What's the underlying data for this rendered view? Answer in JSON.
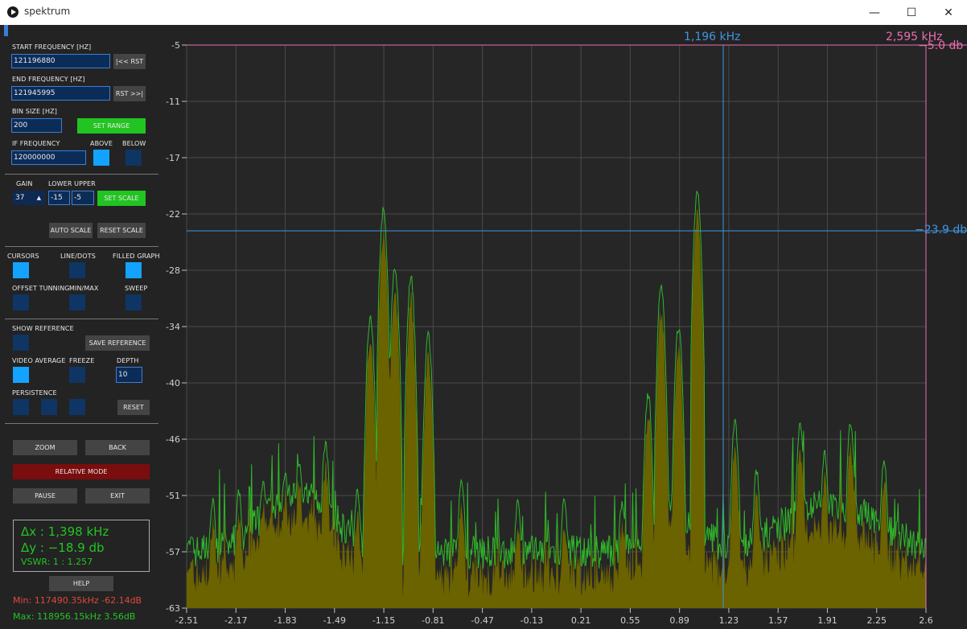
{
  "window": {
    "title": "spektrum",
    "minimize_icon": "—",
    "maximize_icon": "☐",
    "close_icon": "✕"
  },
  "controls": {
    "start_freq_label": "START FREQUENCY [HZ]",
    "start_freq_value": "121196880",
    "rst_left_label": "|<< RST",
    "end_freq_label": "END FREQUENCY [HZ]",
    "end_freq_value": "121945995",
    "rst_right_label": "RST >>|",
    "bin_size_label": "BIN SIZE [HZ]",
    "bin_size_value": "200",
    "set_range_label": "SET RANGE",
    "if_freq_label": "IF FREQUENCY",
    "if_freq_value": "120000000",
    "above_label": "ABOVE",
    "above_checked": true,
    "below_label": "BELOW",
    "below_checked": false,
    "gain_label": "GAIN",
    "gain_value": "37",
    "gain_arrow": "▲",
    "lower_upper_label": "LOWER UPPER",
    "lower_value": "-15",
    "upper_value": "-5",
    "set_scale_label": "SET SCALE",
    "auto_scale_label": "AUTO SCALE",
    "reset_scale_label": "RESET SCALE",
    "cursors_label": "CURSORS",
    "cursors_checked": true,
    "line_dots_label": "LINE/DOTS",
    "line_dots_checked": false,
    "filled_graph_label": "FILLED GRAPH",
    "filled_graph_checked": true,
    "offset_tuning_label": "OFFSET TUNNING",
    "offset_tuning_checked": false,
    "min_max_label": "MIN/MAX",
    "min_max_checked": false,
    "sweep_label": "SWEEP",
    "sweep_checked": false,
    "show_reference_label": "SHOW REFERENCE",
    "show_reference_checked": false,
    "save_reference_label": "SAVE REFERENCE",
    "video_average_label": "VIDEO AVERAGE",
    "video_average_checked": true,
    "freeze_label": "FREEZE",
    "freeze_checked": false,
    "depth_label": "DEPTH",
    "depth_value": "10",
    "persistence_label": "PERSISTENCE",
    "reset_label": "RESET",
    "zoom_label": "ZOOM",
    "back_label": "BACK",
    "relative_mode_label": "RELATIVE MODE",
    "pause_label": "PAUSE",
    "exit_label": "EXIT",
    "help_label": "HELP"
  },
  "readout": {
    "dx": "Δx : 1,398 kHz",
    "dy": "Δy : −18.9 db",
    "vswr": "VSWR: 1 : 1.257",
    "min": "Min: 117490.35kHz -62.14dB",
    "max": "Max: 118956.15kHz 3.56dB"
  },
  "chart_data": {
    "type": "area",
    "title": "",
    "xlabel": "",
    "ylabel": "",
    "xlim": [
      -2.51,
      2.6
    ],
    "ylim": [
      -63,
      -5
    ],
    "x_ticks": [
      "-2.51",
      "-2.17",
      "-1.83",
      "-1.49",
      "-1.15",
      "-0.81",
      "-0.47",
      "-0.13",
      "0.21",
      "0.55",
      "0.89",
      "1.23",
      "1.57",
      "1.91",
      "2.25",
      "2.6"
    ],
    "y_ticks": [
      "-5",
      "-11",
      "-17",
      "-22",
      "-28",
      "-34",
      "-40",
      "-46",
      "-51",
      "-57",
      "-63"
    ],
    "grid": true,
    "cursor_x_label": "1,196 kHz",
    "cursor_x2_label": "2,595 kHz",
    "cursor_y_label": "−23.9 db",
    "cursor_y2_label": "−5.0 db",
    "colors": {
      "fill": "#6b6200",
      "line": "#30b82a",
      "cursor": "#3f95e0",
      "cursor2": "#e86fb0",
      "grid": "#4a4a4a"
    },
    "peaks": [
      {
        "x": -2.51,
        "y": -57
      },
      {
        "x": -2.33,
        "y": -52
      },
      {
        "x": -2.15,
        "y": -51
      },
      {
        "x": -1.98,
        "y": -50
      },
      {
        "x": -1.83,
        "y": -49
      },
      {
        "x": -1.73,
        "y": -48
      },
      {
        "x": -1.55,
        "y": -46
      },
      {
        "x": -1.33,
        "y": -51
      },
      {
        "x": -1.24,
        "y": -33
      },
      {
        "x": -1.15,
        "y": -22
      },
      {
        "x": -1.07,
        "y": -28
      },
      {
        "x": -0.96,
        "y": -29
      },
      {
        "x": -0.84,
        "y": -35
      },
      {
        "x": -0.61,
        "y": -50
      },
      {
        "x": -0.22,
        "y": -52
      },
      {
        "x": 0.1,
        "y": -52
      },
      {
        "x": 0.5,
        "y": -52
      },
      {
        "x": 0.68,
        "y": -41
      },
      {
        "x": 0.77,
        "y": -30
      },
      {
        "x": 0.89,
        "y": -34
      },
      {
        "x": 1.02,
        "y": -20
      },
      {
        "x": 1.28,
        "y": -44
      },
      {
        "x": 1.43,
        "y": -49
      },
      {
        "x": 1.73,
        "y": -44
      },
      {
        "x": 1.9,
        "y": -47
      },
      {
        "x": 2.08,
        "y": -44
      },
      {
        "x": 2.31,
        "y": -48
      },
      {
        "x": 2.6,
        "y": -57
      }
    ]
  }
}
